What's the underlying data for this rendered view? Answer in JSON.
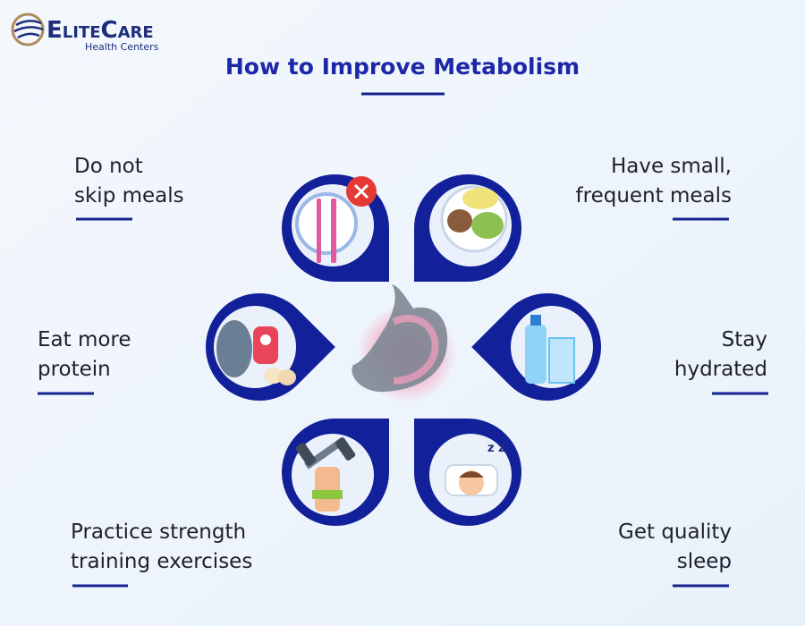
{
  "logo": {
    "name": "EliteCare",
    "tagline": "Health Centers"
  },
  "title": "How to Improve Metabolism",
  "tips": [
    {
      "lines": [
        "Do not",
        "skip meals"
      ]
    },
    {
      "lines": [
        "Have small,",
        "frequent meals"
      ]
    },
    {
      "lines": [
        "Eat more",
        "protein"
      ]
    },
    {
      "lines": [
        "Stay",
        "hydrated"
      ]
    },
    {
      "lines": [
        "Practice strength",
        "training exercises"
      ]
    },
    {
      "lines": [
        "Get quality",
        "sleep"
      ]
    }
  ]
}
